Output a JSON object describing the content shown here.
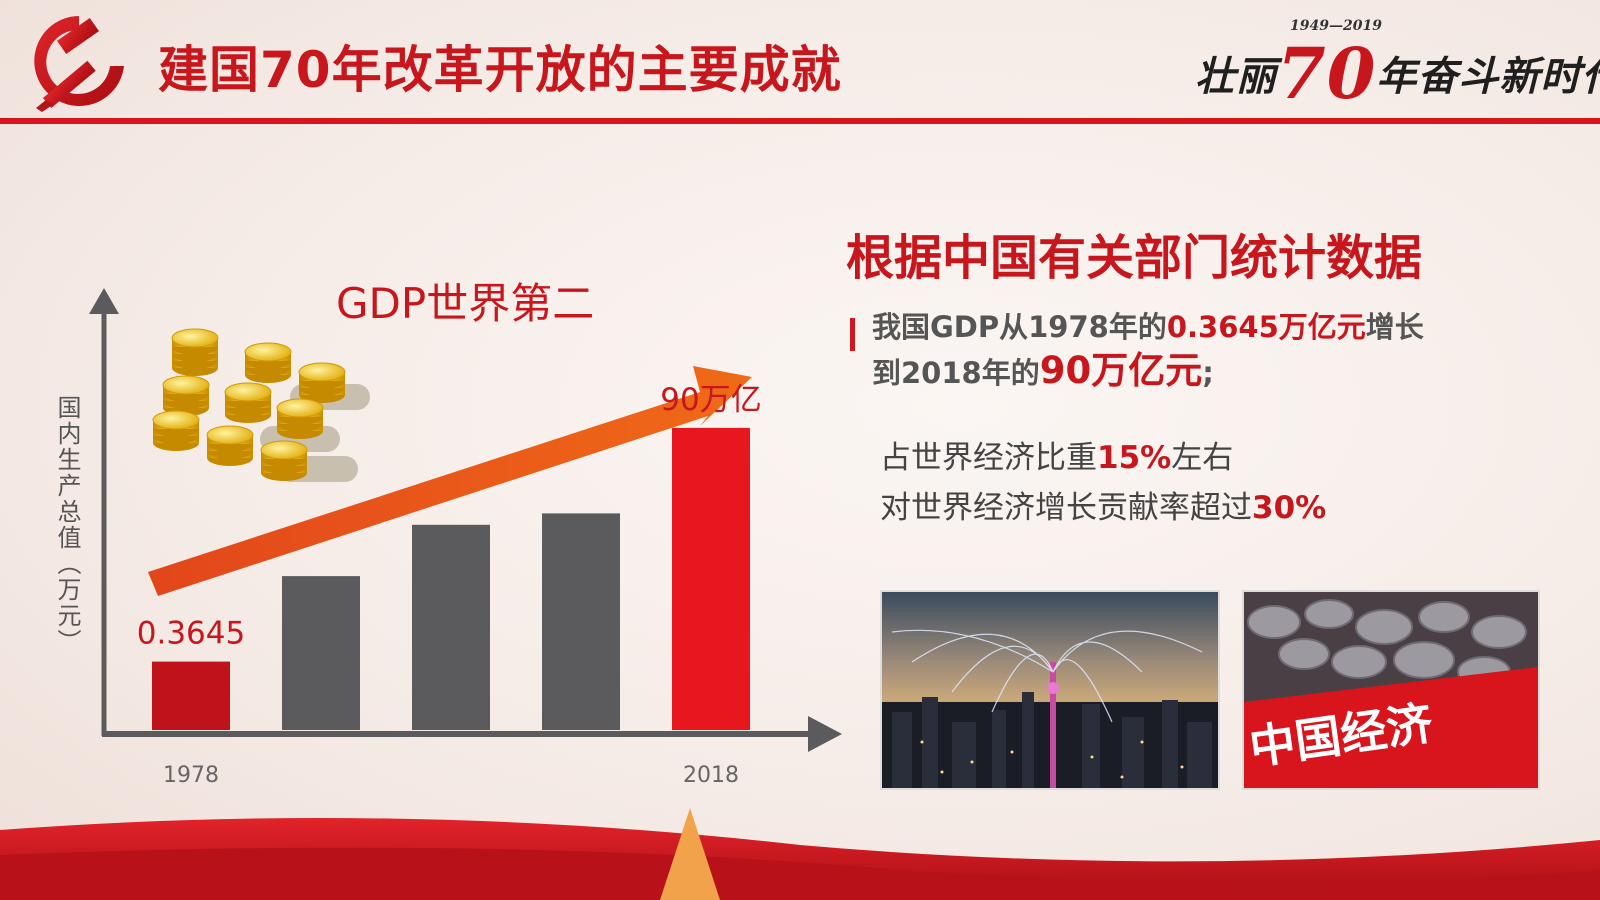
{
  "header": {
    "title": "建国70年改革开放的主要成就",
    "brand_years": "1949—2019",
    "brand_pre": "壮丽",
    "brand_num": "70",
    "brand_post": "年奋斗新时代",
    "emblem": "party-emblem-icon"
  },
  "colors": {
    "primary_red": "#c8161d",
    "accent_red": "#e8161d",
    "bar_gray": "#5b5b5e",
    "arrow_orange": "#e8561a"
  },
  "chart_data": {
    "type": "bar",
    "categories": [
      "1978",
      "",
      "",
      "",
      "2018"
    ],
    "x_tick_labels": [
      "1978",
      "2018"
    ],
    "values": [
      0.3645,
      null,
      null,
      null,
      90
    ],
    "bar_colors": [
      "#c0121b",
      "#5b5b5e",
      "#5b5b5e",
      "#5b5b5e",
      "#e8161d"
    ],
    "relative_heights": [
      0.12,
      0.27,
      0.36,
      0.38,
      0.53
    ],
    "data_labels": [
      "0.3645",
      "",
      "",
      "",
      "90万亿"
    ],
    "title": "GDP世界第二",
    "ylabel": "国内生产总值（万元）",
    "xlabel": "",
    "trend_arrow": "up",
    "decoration": "gold-coin-stacks"
  },
  "right": {
    "heading": "根据中国有关部门统计数据",
    "para_1": "我国GDP从1978年的",
    "para_hl_1": "0.3645万亿元",
    "para_2": "增长",
    "para_3": "到2018年的",
    "para_hl_2": "90万亿元",
    "para_4": ";",
    "line1_pre": "占世界经济比重",
    "line1_hl": "15%",
    "line1_post": "左右",
    "line2_pre": "对世界经济增长贡献率超过",
    "line2_hl": "30%"
  },
  "photos": [
    {
      "name": "city-network-photo"
    },
    {
      "name": "coins-photo",
      "caption": "中国经济"
    }
  ]
}
